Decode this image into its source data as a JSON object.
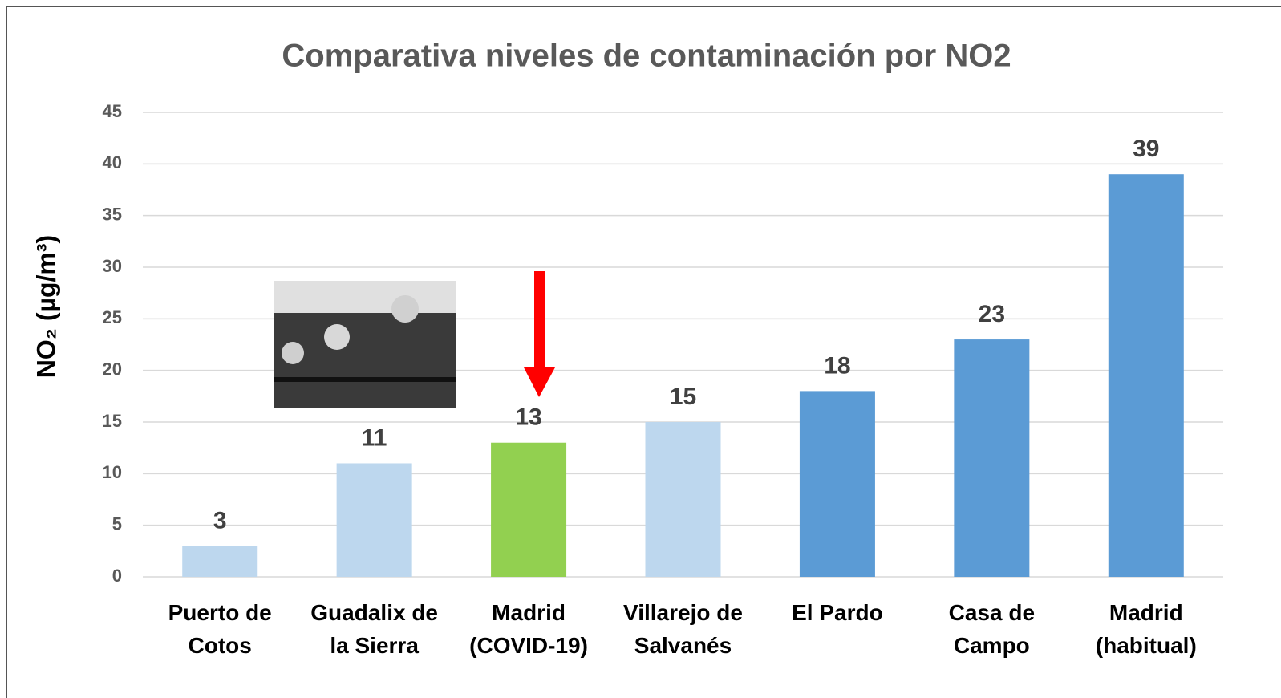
{
  "chart_data": {
    "type": "bar",
    "title": "Comparativa niveles de contaminación por NO2",
    "y_label": "NO₂ (µg/m³)",
    "categories": [
      "Puerto de\nCotos",
      "Guadalix de\nla Sierra",
      "Madrid\n(COVID-19)",
      "Villarejo de\nSalvanés",
      "El Pardo",
      "Casa de\nCampo",
      "Madrid\n(habitual)"
    ],
    "values": [
      3,
      11,
      13,
      15,
      18,
      23,
      39
    ],
    "colors": [
      "#bdd7ee",
      "#bdd7ee",
      "#92d050",
      "#bdd7ee",
      "#5b9bd5",
      "#5b9bd5",
      "#5b9bd5"
    ],
    "ylim": [
      0,
      45
    ],
    "yticks": [
      0,
      5,
      10,
      15,
      20,
      25,
      30,
      35,
      40,
      45
    ],
    "grid": true
  }
}
